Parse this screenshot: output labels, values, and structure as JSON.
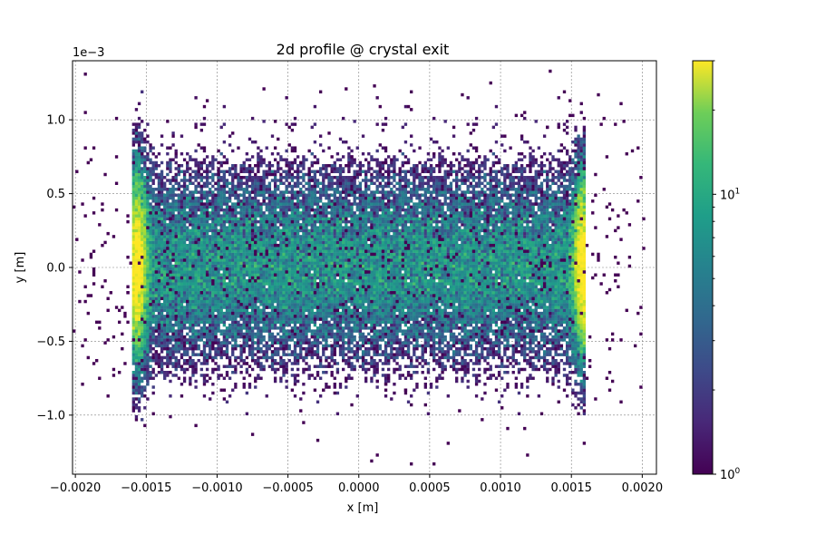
{
  "chart_data": {
    "type": "heatmap",
    "title": "2d profile @ crystal exit",
    "xlabel": "x [m]",
    "ylabel": "y [m]",
    "y_offset_label": "1e−3",
    "xlim": [
      -0.00202,
      0.0021
    ],
    "ylim": [
      -1.4,
      1.4
    ],
    "x_ticks": [
      -0.002,
      -0.0015,
      -0.001,
      -0.0005,
      0.0,
      0.0005,
      0.001,
      0.0015,
      0.002
    ],
    "x_tick_labels": [
      "−0.0020",
      "−0.0015",
      "−0.0010",
      "−0.0005",
      "0.0000",
      "0.0005",
      "0.0010",
      "0.0015",
      "0.0020"
    ],
    "y_ticks": [
      -1.0,
      -0.5,
      0.0,
      0.5,
      1.0
    ],
    "y_tick_labels": [
      "−1.0",
      "−0.5",
      "0.0",
      "0.5",
      "1.0"
    ],
    "grid": true,
    "colormap": "viridis",
    "color_scale": "log",
    "colorbar": {
      "range": [
        1,
        30
      ],
      "tick_labels": [
        {
          "base": "10",
          "exp": "0",
          "value": 1
        },
        {
          "base": "10",
          "exp": "1",
          "value": 10
        }
      ]
    },
    "distribution": {
      "description_source": "2d histogram counts",
      "core_x_range": [
        -0.0016,
        0.0016
      ],
      "core_y_sigma": 0.35,
      "edge_peaks_x": [
        -0.00157,
        0.00157
      ],
      "edge_peak_count_max": 30,
      "center_count_typical": 6,
      "bin_width_x": 2e-05,
      "bin_width_y": 0.02
    }
  }
}
